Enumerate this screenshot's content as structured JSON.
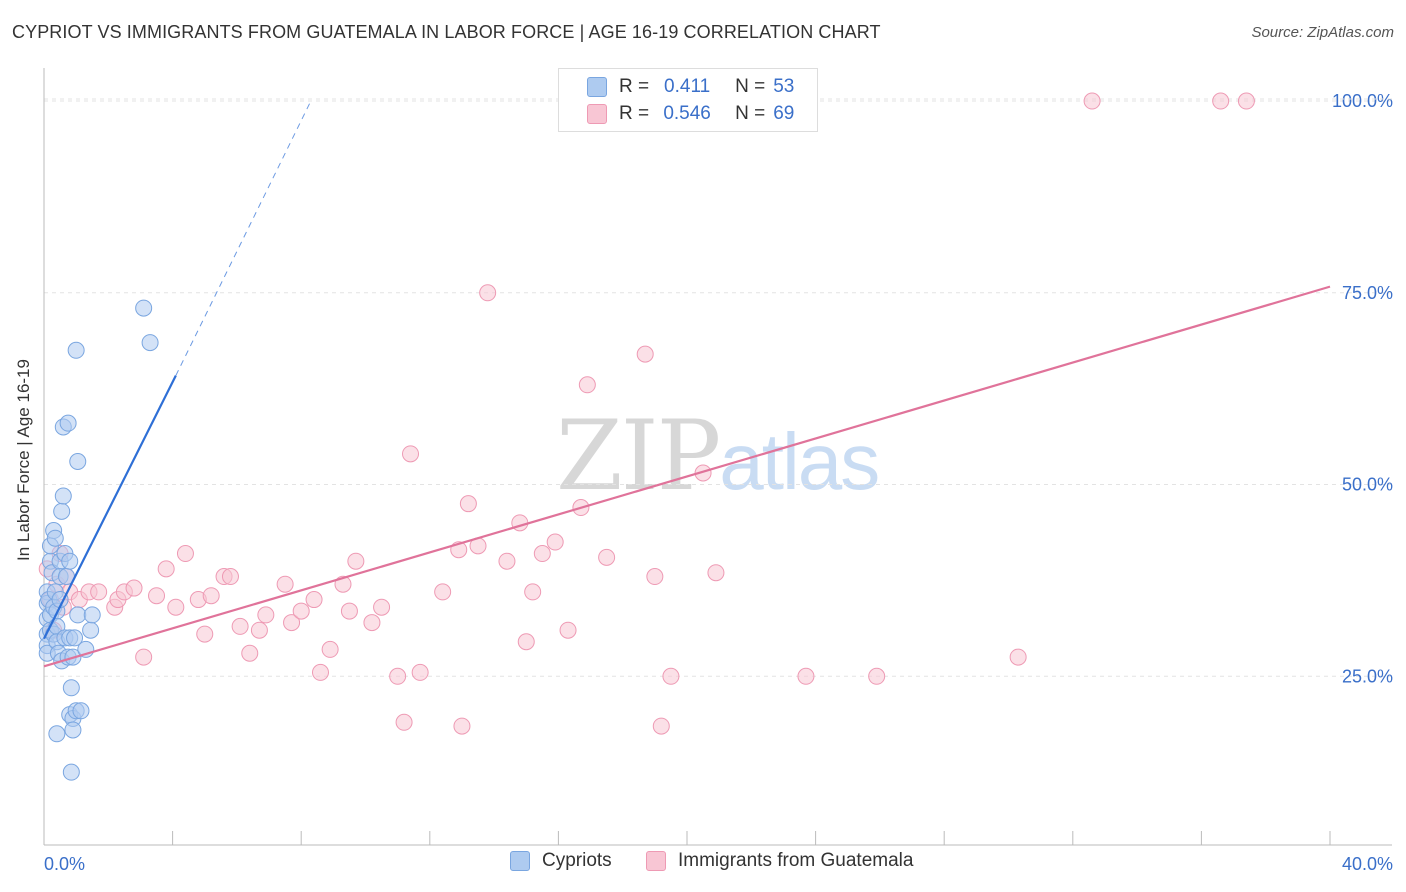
{
  "title": "CYPRIOT VS IMMIGRANTS FROM GUATEMALA IN LABOR FORCE | AGE 16-19 CORRELATION CHART",
  "source": "Source: ZipAtlas.com",
  "watermark": {
    "part1": "ZIP",
    "part2": "atlas"
  },
  "legend": {
    "r_label": "R =",
    "n_label": "N =",
    "series": [
      {
        "name": "Cypriots",
        "r": "0.411",
        "n": "53"
      },
      {
        "name": "Immigrants from Guatemala",
        "r": "0.546",
        "n": "69"
      }
    ]
  },
  "colors": {
    "blue_fill": "#aecbf0",
    "blue_stroke": "#7aa6e0",
    "blue_line": "#2e6fd6",
    "pink_fill": "#f8c6d4",
    "pink_stroke": "#ee9ab4",
    "pink_line": "#e0739a",
    "grid": "#e3e3e3",
    "axis_text": "#3a6fc9"
  },
  "chart_data": {
    "type": "scatter",
    "title": "CYPRIOT VS IMMIGRANTS FROM GUATEMALA IN LABOR FORCE | AGE 16-19 CORRELATION CHART",
    "xlabel": "",
    "ylabel": "In Labor Force | Age 16-19",
    "xlim": [
      0,
      40
    ],
    "ylim": [
      3,
      103
    ],
    "x_tick_labels": [
      "0.0%",
      "40.0%"
    ],
    "y_ticks": [
      25,
      50,
      75,
      100
    ],
    "y_tick_labels": [
      "25.0%",
      "50.0%",
      "75.0%",
      "100.0%"
    ],
    "grid": true,
    "series": [
      {
        "name": "Cypriots",
        "r": 0.411,
        "n": 53,
        "trend": {
          "x0": 0,
          "y0": 29.9,
          "x1": 4.1,
          "y1": 64.2,
          "dash_to_x": 8.3,
          "dash_to_y": 100
        },
        "points": [
          [
            0.1,
            36
          ],
          [
            0.1,
            34.5
          ],
          [
            0.1,
            32.5
          ],
          [
            0.1,
            30.5
          ],
          [
            0.1,
            29
          ],
          [
            0.1,
            28
          ],
          [
            0.15,
            35
          ],
          [
            0.2,
            33
          ],
          [
            0.2,
            31
          ],
          [
            0.2,
            40
          ],
          [
            0.2,
            42
          ],
          [
            0.25,
            38.5
          ],
          [
            0.3,
            44
          ],
          [
            0.3,
            34
          ],
          [
            0.3,
            30.5
          ],
          [
            0.35,
            43
          ],
          [
            0.35,
            36
          ],
          [
            0.4,
            33.5
          ],
          [
            0.4,
            31.5
          ],
          [
            0.4,
            29.5
          ],
          [
            0.45,
            28
          ],
          [
            0.5,
            40
          ],
          [
            0.5,
            38
          ],
          [
            0.5,
            35
          ],
          [
            0.55,
            46.5
          ],
          [
            0.55,
            27
          ],
          [
            0.6,
            48.5
          ],
          [
            0.6,
            57.5
          ],
          [
            0.65,
            41
          ],
          [
            0.65,
            30
          ],
          [
            0.7,
            38
          ],
          [
            0.75,
            58
          ],
          [
            0.75,
            27.5
          ],
          [
            0.8,
            40
          ],
          [
            0.8,
            30
          ],
          [
            0.8,
            20
          ],
          [
            0.85,
            23.5
          ],
          [
            0.85,
            12.5
          ],
          [
            0.9,
            27.5
          ],
          [
            0.9,
            19.5
          ],
          [
            0.9,
            18
          ],
          [
            0.95,
            30
          ],
          [
            1.0,
            20.5
          ],
          [
            1.0,
            67.5
          ],
          [
            1.05,
            53
          ],
          [
            1.05,
            33
          ],
          [
            1.15,
            20.5
          ],
          [
            1.3,
            28.5
          ],
          [
            1.45,
            31
          ],
          [
            1.5,
            33
          ],
          [
            0.4,
            17.5
          ],
          [
            3.1,
            73
          ],
          [
            3.3,
            68.5
          ]
        ]
      },
      {
        "name": "Immigrants from Guatemala",
        "r": 0.546,
        "n": 69,
        "trend": {
          "x0": 0,
          "y0": 26.3,
          "x1": 40,
          "y1": 75.8
        },
        "points": [
          [
            0.1,
            39
          ],
          [
            0.2,
            35
          ],
          [
            0.3,
            31
          ],
          [
            0.4,
            37
          ],
          [
            0.5,
            41
          ],
          [
            0.6,
            34
          ],
          [
            0.7,
            38
          ],
          [
            0.8,
            36
          ],
          [
            1.1,
            35
          ],
          [
            1.4,
            36
          ],
          [
            1.7,
            36
          ],
          [
            2.2,
            34
          ],
          [
            2.3,
            35
          ],
          [
            2.5,
            36
          ],
          [
            2.8,
            36.5
          ],
          [
            3.1,
            27.5
          ],
          [
            3.5,
            35.5
          ],
          [
            3.8,
            39
          ],
          [
            4.1,
            34
          ],
          [
            4.4,
            41
          ],
          [
            4.8,
            35
          ],
          [
            5.0,
            30.5
          ],
          [
            5.2,
            35.5
          ],
          [
            5.6,
            38
          ],
          [
            5.8,
            38
          ],
          [
            6.1,
            31.5
          ],
          [
            6.4,
            28
          ],
          [
            6.7,
            31
          ],
          [
            6.9,
            33
          ],
          [
            7.5,
            37
          ],
          [
            7.7,
            32
          ],
          [
            8.0,
            33.5
          ],
          [
            8.4,
            35
          ],
          [
            8.6,
            25.5
          ],
          [
            8.9,
            28.5
          ],
          [
            9.3,
            37
          ],
          [
            9.5,
            33.5
          ],
          [
            9.7,
            40
          ],
          [
            10.2,
            32
          ],
          [
            10.5,
            34
          ],
          [
            11.0,
            25
          ],
          [
            11.2,
            19
          ],
          [
            11.4,
            54
          ],
          [
            11.7,
            25.5
          ],
          [
            12.4,
            36
          ],
          [
            12.9,
            41.5
          ],
          [
            13.0,
            18.5
          ],
          [
            13.2,
            47.5
          ],
          [
            13.5,
            42
          ],
          [
            13.8,
            75
          ],
          [
            14.4,
            40
          ],
          [
            14.8,
            45
          ],
          [
            15.0,
            29.5
          ],
          [
            15.2,
            36
          ],
          [
            15.5,
            41
          ],
          [
            15.9,
            42.5
          ],
          [
            16.3,
            31
          ],
          [
            16.7,
            47
          ],
          [
            16.9,
            63
          ],
          [
            17.5,
            40.5
          ],
          [
            18.7,
            67
          ],
          [
            19.0,
            38
          ],
          [
            19.5,
            25
          ],
          [
            19.2,
            18.5
          ],
          [
            20.5,
            51.5
          ],
          [
            20.9,
            38.5
          ],
          [
            23.7,
            25
          ],
          [
            25.9,
            25
          ],
          [
            30.3,
            27.5
          ]
        ],
        "points_top": [
          [
            20.8,
            100
          ],
          [
            32.6,
            100
          ],
          [
            36.6,
            100
          ],
          [
            37.4,
            100
          ]
        ]
      }
    ]
  }
}
